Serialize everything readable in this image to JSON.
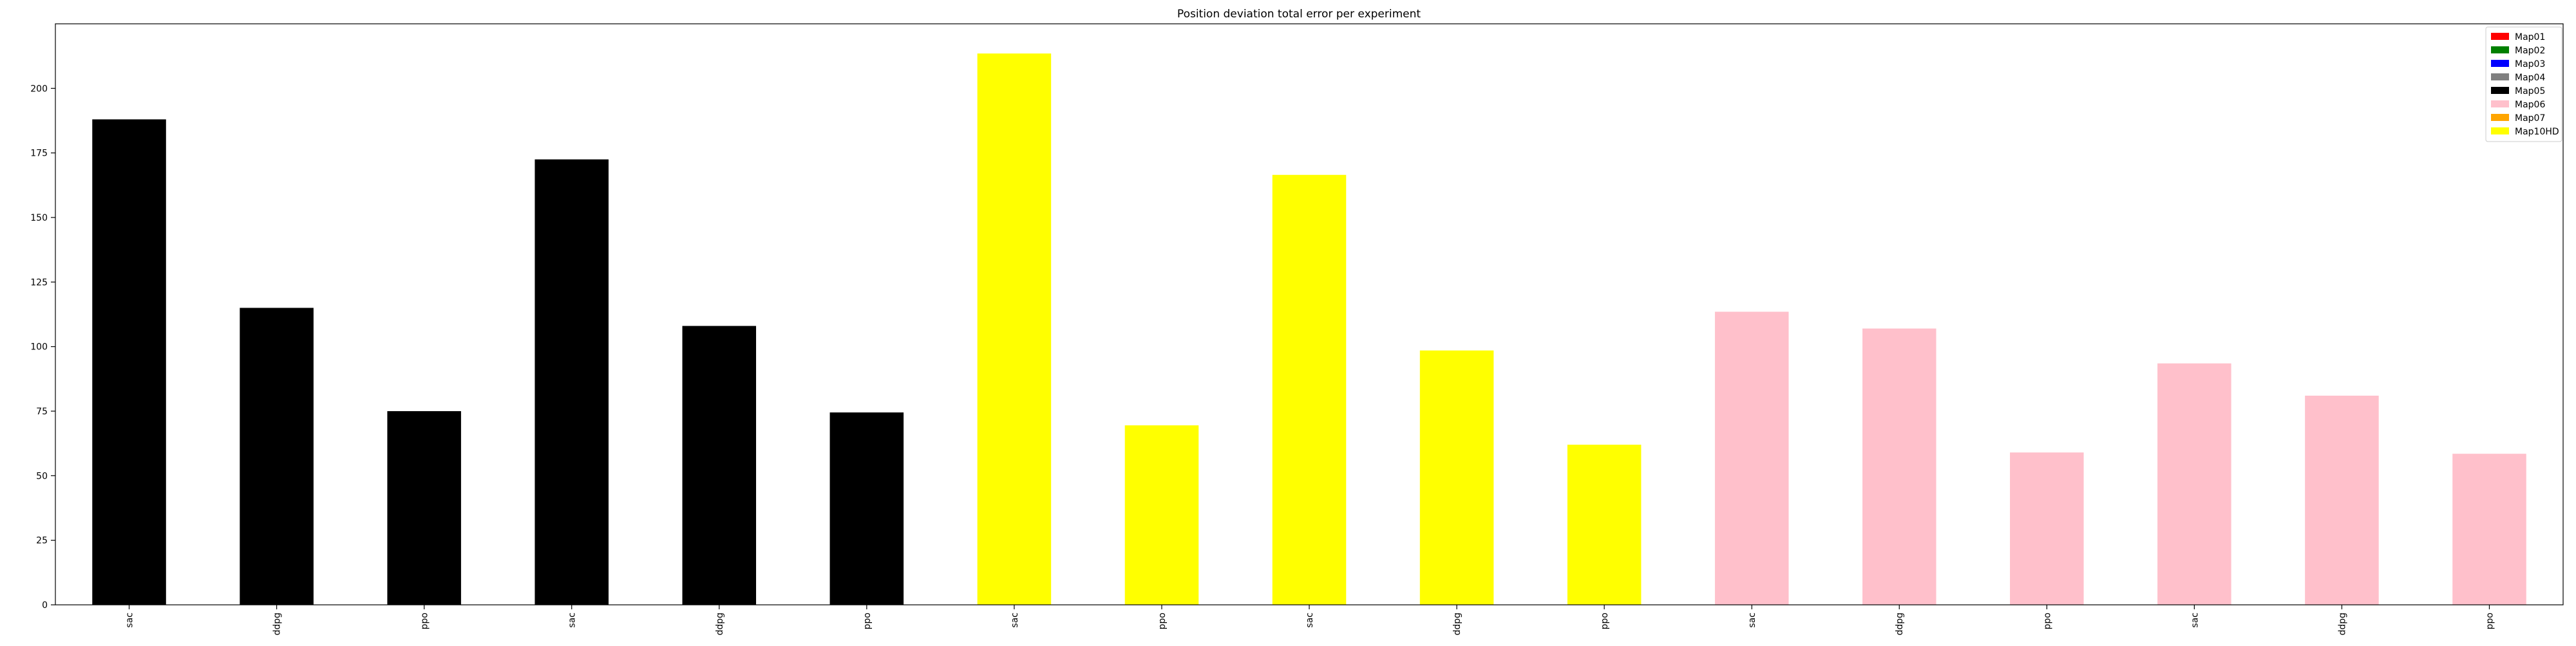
{
  "chart_data": {
    "type": "bar",
    "title": "Position deviation total error per experiment",
    "xlabel": "",
    "ylabel": "",
    "categories": [
      "sac",
      "ddpg",
      "ppo",
      "sac",
      "ddpg",
      "ppo",
      "sac",
      "ppo",
      "sac",
      "ddpg",
      "ppo",
      "sac",
      "ddpg",
      "ppo",
      "sac",
      "ddpg",
      "ppo"
    ],
    "values": [
      188,
      115,
      75,
      172.5,
      108,
      74.5,
      213.5,
      69.5,
      166.5,
      98.5,
      62,
      113.5,
      107,
      59,
      93.5,
      81,
      58.5
    ],
    "bar_colors": [
      "#000000",
      "#000000",
      "#000000",
      "#000000",
      "#000000",
      "#000000",
      "#ffff00",
      "#ffff00",
      "#ffff00",
      "#ffff00",
      "#ffff00",
      "#ffc0cb",
      "#ffc0cb",
      "#ffc0cb",
      "#ffc0cb",
      "#ffc0cb",
      "#ffc0cb"
    ],
    "ylim": [
      0,
      225
    ],
    "yticks": [
      0,
      25,
      50,
      75,
      100,
      125,
      150,
      175,
      200
    ],
    "grid": false,
    "legend_position": "top-right",
    "legend": [
      {
        "label": "Map01",
        "color": "#ff0000"
      },
      {
        "label": "Map02",
        "color": "#008000"
      },
      {
        "label": "Map03",
        "color": "#0000ff"
      },
      {
        "label": "Map04",
        "color": "#808080"
      },
      {
        "label": "Map05",
        "color": "#000000"
      },
      {
        "label": "Map06",
        "color": "#ffc0cb"
      },
      {
        "label": "Map07",
        "color": "#ffa500"
      },
      {
        "label": "Map10HD",
        "color": "#ffff00"
      }
    ]
  }
}
